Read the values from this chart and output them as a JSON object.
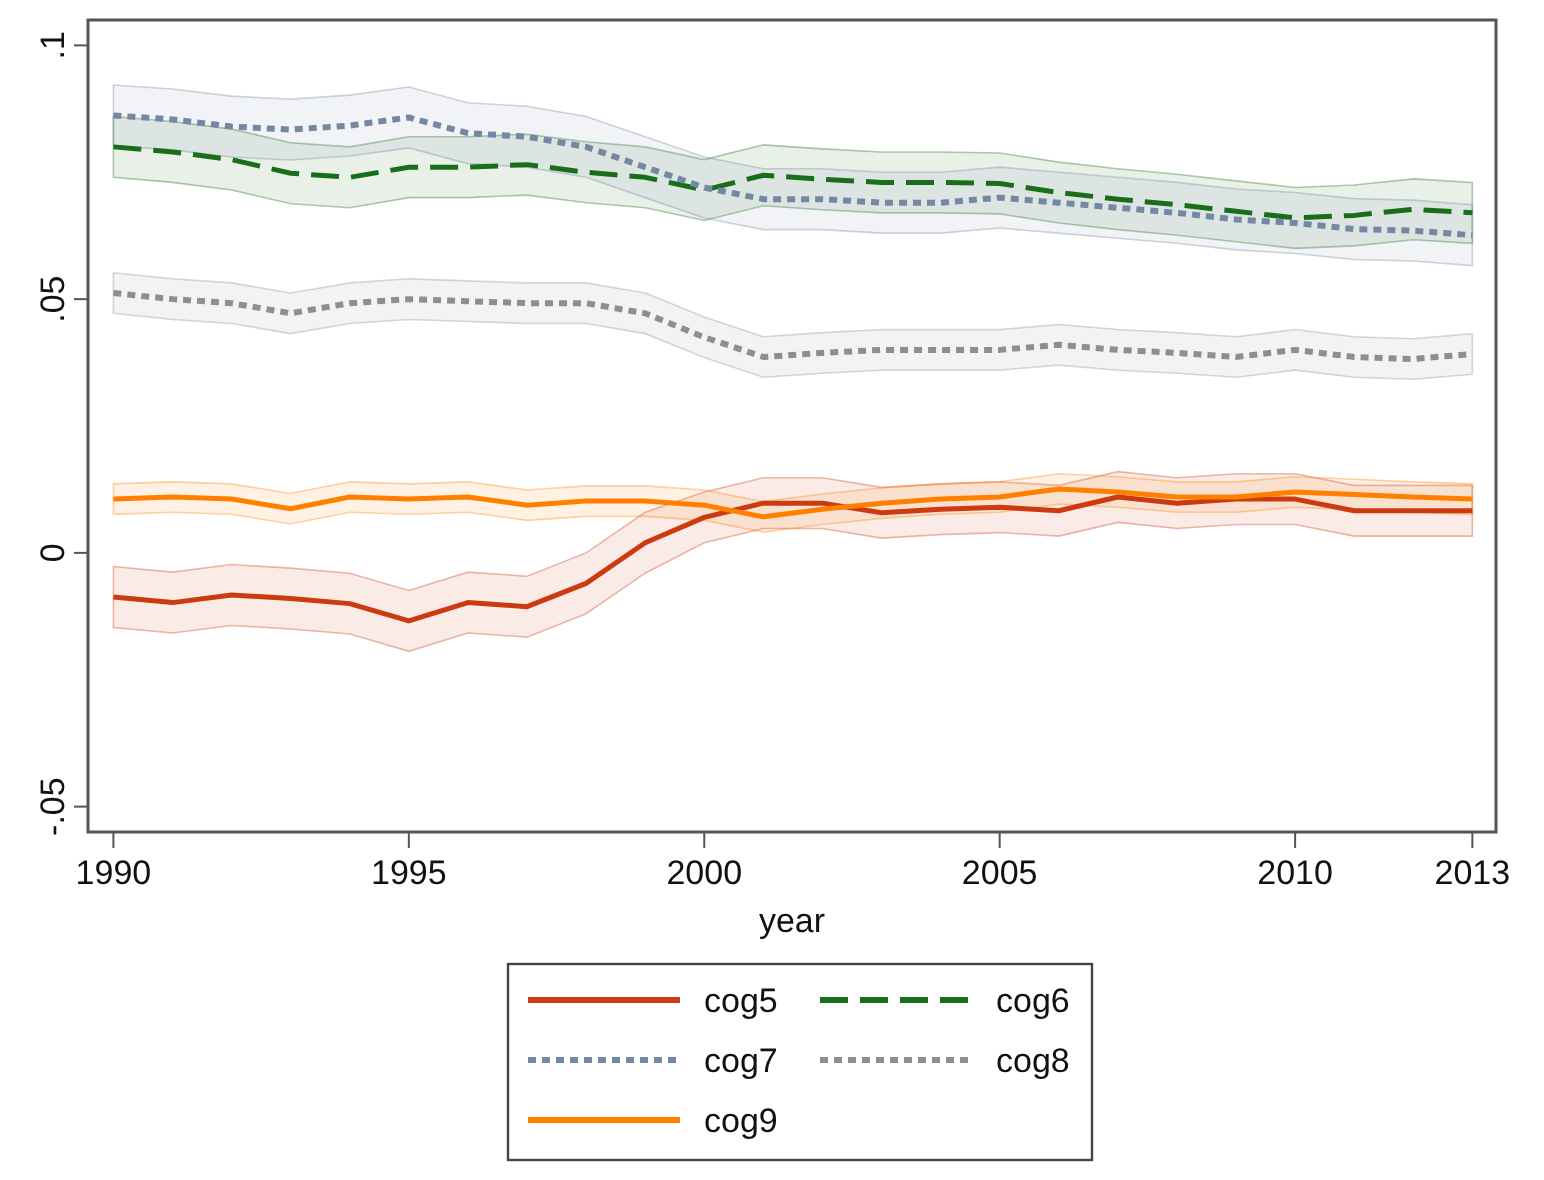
{
  "chart_data": {
    "type": "line",
    "xlabel": "year",
    "x": [
      1990,
      1991,
      1992,
      1993,
      1994,
      1995,
      1996,
      1997,
      1998,
      1999,
      2000,
      2001,
      2002,
      2003,
      2004,
      2005,
      2006,
      2007,
      2008,
      2009,
      2010,
      2011,
      2012,
      2013
    ],
    "xlim": [
      1989.57,
      2013.4
    ],
    "xticks": [
      1990,
      1995,
      2000,
      2005,
      2010,
      2013
    ],
    "ylim": [
      -0.055,
      0.105
    ],
    "yticks": [
      {
        "value": -0.05,
        "label": "-.05"
      },
      {
        "value": 0,
        "label": "0"
      },
      {
        "value": 0.05,
        "label": ".05"
      },
      {
        "value": 0.1,
        "label": ".1"
      }
    ],
    "legend": "bottom",
    "series": [
      {
        "name": "cog5",
        "color": "#cc3a12",
        "line_style": "solid",
        "values": [
          -0.0087,
          -0.0098,
          -0.0083,
          -0.009,
          -0.01,
          -0.0134,
          -0.0098,
          -0.0106,
          -0.006,
          0.002,
          0.007,
          0.0098,
          0.0098,
          0.0079,
          0.0086,
          0.009,
          0.0083,
          0.011,
          0.0098,
          0.0106,
          0.0106,
          0.0083,
          0.0083,
          0.0083
        ],
        "lower": [
          -0.0147,
          -0.0158,
          -0.0143,
          -0.015,
          -0.016,
          -0.0194,
          -0.0158,
          -0.0166,
          -0.012,
          -0.004,
          0.002,
          0.0048,
          0.0048,
          0.0029,
          0.0036,
          0.004,
          0.0033,
          0.006,
          0.0048,
          0.0056,
          0.0056,
          0.0033,
          0.0033,
          0.0033
        ],
        "upper": [
          -0.0027,
          -0.0038,
          -0.0023,
          -0.003,
          -0.004,
          -0.0074,
          -0.0038,
          -0.0046,
          0.0,
          0.008,
          0.012,
          0.0148,
          0.0148,
          0.0129,
          0.0136,
          0.014,
          0.0133,
          0.016,
          0.0148,
          0.0156,
          0.0156,
          0.0133,
          0.0133,
          0.0133
        ]
      },
      {
        "name": "cog6",
        "color": "#1a6e1a",
        "line_style": "dashed",
        "values": [
          0.08,
          0.079,
          0.0775,
          0.0748,
          0.074,
          0.076,
          0.076,
          0.0765,
          0.075,
          0.074,
          0.0715,
          0.0744,
          0.0736,
          0.073,
          0.073,
          0.0728,
          0.071,
          0.0697,
          0.0686,
          0.0673,
          0.066,
          0.0665,
          0.0677,
          0.067
        ],
        "lower": [
          0.074,
          0.073,
          0.0715,
          0.0688,
          0.068,
          0.07,
          0.07,
          0.0705,
          0.069,
          0.068,
          0.0655,
          0.0684,
          0.0676,
          0.067,
          0.067,
          0.0668,
          0.065,
          0.0637,
          0.0626,
          0.0613,
          0.06,
          0.0605,
          0.0617,
          0.061
        ],
        "upper": [
          0.086,
          0.085,
          0.0835,
          0.0808,
          0.08,
          0.082,
          0.082,
          0.0825,
          0.081,
          0.08,
          0.0775,
          0.0804,
          0.0796,
          0.079,
          0.079,
          0.0788,
          0.077,
          0.0757,
          0.0746,
          0.0733,
          0.072,
          0.0725,
          0.0737,
          0.073
        ]
      },
      {
        "name": "cog7",
        "color": "#7388a3",
        "line_style": "dotted",
        "values": [
          0.0862,
          0.0854,
          0.084,
          0.0834,
          0.0842,
          0.0858,
          0.0827,
          0.082,
          0.08,
          0.076,
          0.072,
          0.0697,
          0.0697,
          0.069,
          0.069,
          0.07,
          0.069,
          0.068,
          0.067,
          0.0657,
          0.065,
          0.0638,
          0.0635,
          0.0626
        ],
        "lower": [
          0.0802,
          0.0794,
          0.078,
          0.0774,
          0.0782,
          0.0798,
          0.0767,
          0.076,
          0.074,
          0.07,
          0.066,
          0.0637,
          0.0637,
          0.063,
          0.063,
          0.064,
          0.063,
          0.062,
          0.061,
          0.0597,
          0.059,
          0.0578,
          0.0575,
          0.0566
        ],
        "upper": [
          0.0922,
          0.0914,
          0.09,
          0.0894,
          0.0902,
          0.0918,
          0.0887,
          0.088,
          0.086,
          0.082,
          0.078,
          0.0757,
          0.0757,
          0.075,
          0.075,
          0.076,
          0.075,
          0.074,
          0.073,
          0.0717,
          0.071,
          0.0698,
          0.0695,
          0.0686
        ]
      },
      {
        "name": "cog8",
        "color": "#8e8e8e",
        "line_style": "dotted",
        "values": [
          0.0512,
          0.05,
          0.0492,
          0.0472,
          0.0492,
          0.05,
          0.0496,
          0.0492,
          0.0492,
          0.0472,
          0.0425,
          0.0386,
          0.0394,
          0.04,
          0.04,
          0.04,
          0.041,
          0.04,
          0.0394,
          0.0386,
          0.04,
          0.0386,
          0.0382,
          0.0392
        ],
        "lower": [
          0.0472,
          0.046,
          0.0452,
          0.0432,
          0.0452,
          0.046,
          0.0456,
          0.0452,
          0.0452,
          0.0432,
          0.0385,
          0.0346,
          0.0354,
          0.036,
          0.036,
          0.036,
          0.037,
          0.036,
          0.0354,
          0.0346,
          0.036,
          0.0346,
          0.0342,
          0.0352
        ],
        "upper": [
          0.0552,
          0.054,
          0.0532,
          0.0512,
          0.0532,
          0.054,
          0.0536,
          0.0532,
          0.0532,
          0.0512,
          0.0465,
          0.0426,
          0.0434,
          0.044,
          0.044,
          0.044,
          0.045,
          0.044,
          0.0434,
          0.0426,
          0.044,
          0.0426,
          0.0422,
          0.0432
        ]
      },
      {
        "name": "cog9",
        "color": "#ff8000",
        "line_style": "solid",
        "values": [
          0.0106,
          0.011,
          0.0106,
          0.0087,
          0.011,
          0.0106,
          0.011,
          0.0094,
          0.0102,
          0.0102,
          0.0094,
          0.0071,
          0.0086,
          0.0098,
          0.0106,
          0.011,
          0.0126,
          0.012,
          0.011,
          0.011,
          0.012,
          0.0115,
          0.011,
          0.0106
        ],
        "lower": [
          0.0076,
          0.008,
          0.0076,
          0.0057,
          0.008,
          0.0076,
          0.008,
          0.0064,
          0.0072,
          0.0072,
          0.0064,
          0.0041,
          0.0056,
          0.0068,
          0.0076,
          0.008,
          0.0096,
          0.009,
          0.008,
          0.008,
          0.009,
          0.0085,
          0.008,
          0.0076
        ],
        "upper": [
          0.0136,
          0.014,
          0.0136,
          0.0117,
          0.014,
          0.0136,
          0.014,
          0.0124,
          0.0132,
          0.0132,
          0.0124,
          0.0101,
          0.0116,
          0.0128,
          0.0136,
          0.014,
          0.0156,
          0.015,
          0.014,
          0.014,
          0.015,
          0.0145,
          0.014,
          0.0136
        ]
      }
    ]
  }
}
